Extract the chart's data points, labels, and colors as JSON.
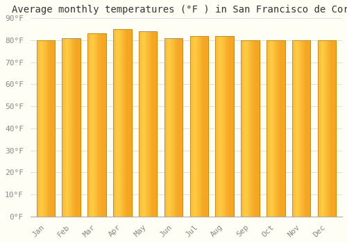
{
  "title": "Average monthly temperatures (°F ) in San Francisco de Coray",
  "months": [
    "Jan",
    "Feb",
    "Mar",
    "Apr",
    "May",
    "Jun",
    "Jul",
    "Aug",
    "Sep",
    "Oct",
    "Nov",
    "Dec"
  ],
  "values": [
    80,
    81,
    83,
    85,
    84,
    81,
    82,
    82,
    80,
    80,
    80,
    80
  ],
  "bar_color_light": "#FFCC44",
  "bar_color_dark": "#F5A623",
  "bar_edge_color": "#C8860A",
  "background_color": "#FFFEF5",
  "grid_color": "#DDDDDD",
  "yticks": [
    0,
    10,
    20,
    30,
    40,
    50,
    60,
    70,
    80,
    90
  ],
  "ylim": [
    0,
    90
  ],
  "title_fontsize": 10,
  "tick_fontsize": 8,
  "font_family": "monospace"
}
